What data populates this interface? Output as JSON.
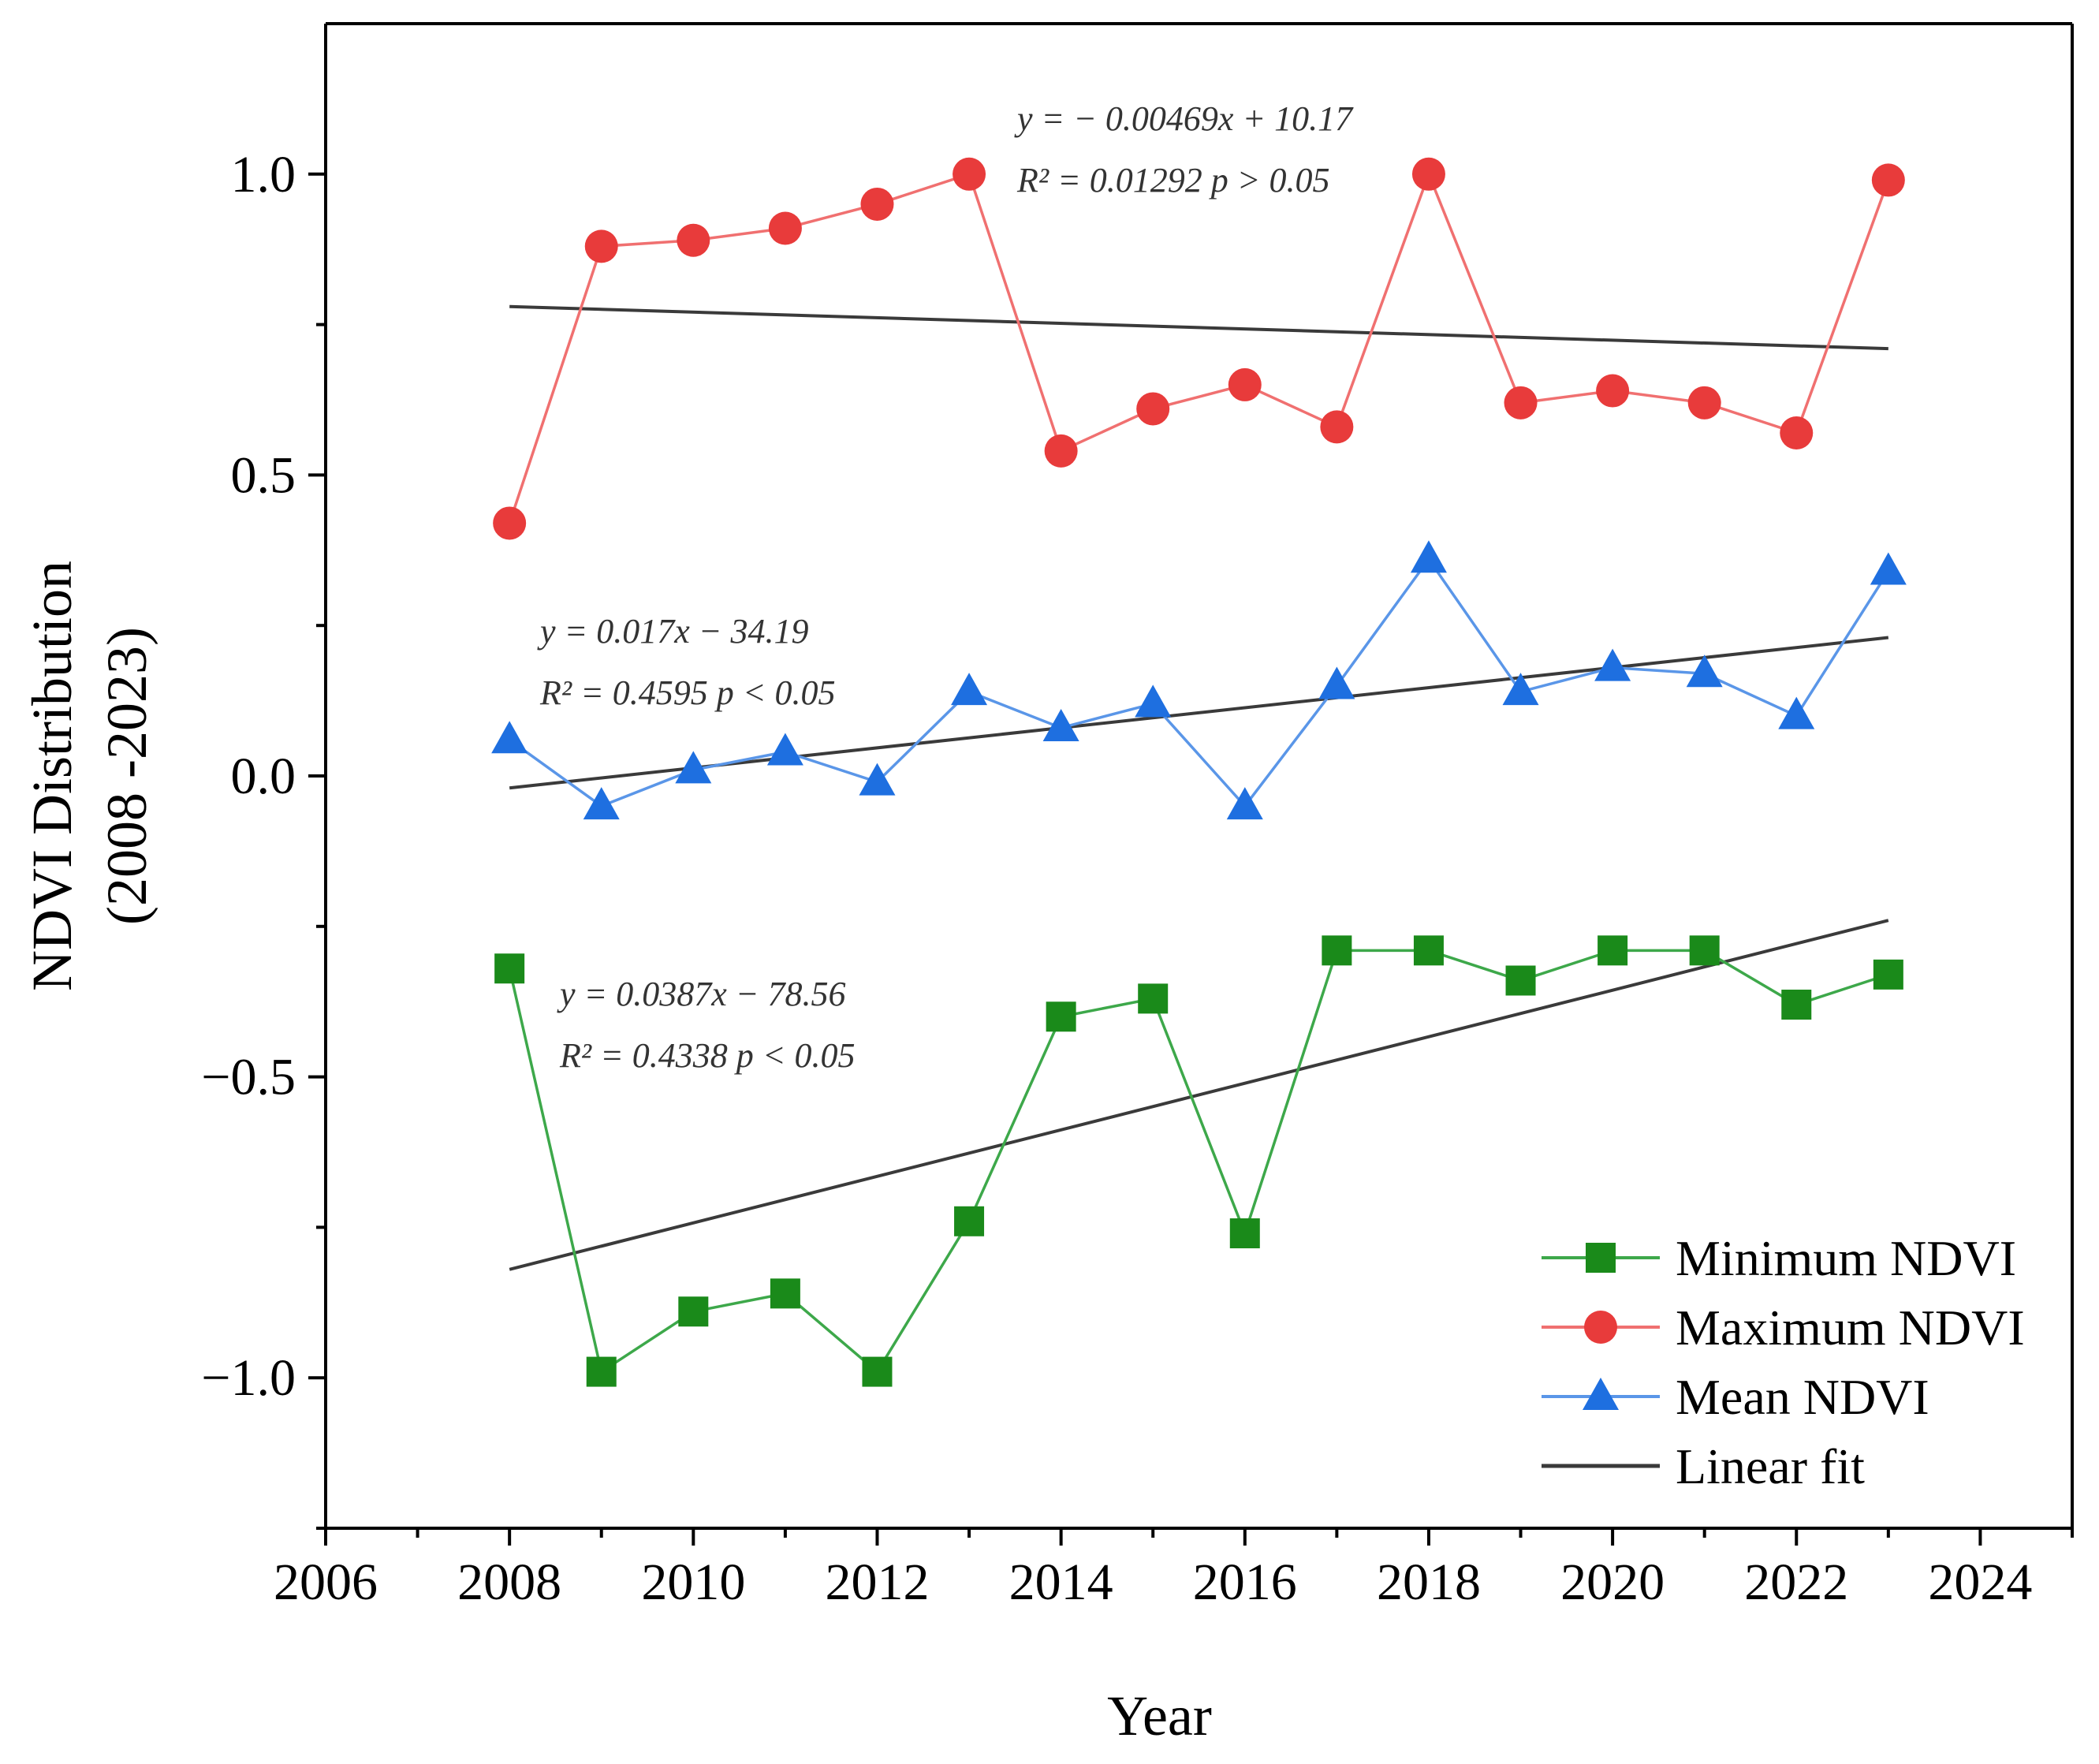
{
  "chart_data": {
    "type": "line",
    "xlabel": "Year",
    "ylabel_lines": [
      "NDVI Distribution",
      "(2008 -2023)"
    ],
    "xlim": [
      2006,
      2025
    ],
    "ylim": [
      -1.25,
      1.25
    ],
    "xticks": [
      2006,
      2008,
      2010,
      2012,
      2014,
      2016,
      2018,
      2020,
      2022,
      2024
    ],
    "xtick_labels": [
      "2006",
      "2008",
      "2010",
      "2012",
      "2014",
      "2016",
      "2018",
      "2020",
      "2022",
      "2024"
    ],
    "yticks": [
      1.0,
      0.5,
      0.0,
      -0.5,
      -1.0
    ],
    "ytick_labels": [
      "1.0",
      "0.5",
      "0.0",
      "−0.5",
      "−1.0"
    ],
    "grid": false,
    "legend_position": "bottom-right",
    "years": [
      2008,
      2009,
      2010,
      2011,
      2012,
      2013,
      2014,
      2015,
      2016,
      2017,
      2018,
      2019,
      2020,
      2021,
      2022,
      2023
    ],
    "series": [
      {
        "name": "Minimum NDVI",
        "key": "min",
        "color": "#3da84a",
        "marker_color": "#1a8a1a",
        "marker": "square",
        "values": [
          -0.32,
          -0.99,
          -0.89,
          -0.86,
          -0.99,
          -0.74,
          -0.4,
          -0.37,
          -0.76,
          -0.29,
          -0.29,
          -0.34,
          -0.29,
          -0.29,
          -0.38,
          -0.33
        ],
        "fit": {
          "x": [
            2008,
            2023
          ],
          "y": [
            -0.82,
            -0.24
          ]
        },
        "annotation": [
          "y = 0.0387x − 78.56",
          "R² = 0.4338   p < 0.05"
        ]
      },
      {
        "name": "Maximum NDVI",
        "key": "max",
        "color": "#f07070",
        "marker_color": "#e83b3b",
        "marker": "circle",
        "values": [
          0.42,
          0.88,
          0.89,
          0.91,
          0.95,
          1.0,
          0.54,
          0.61,
          0.65,
          0.58,
          1.0,
          0.62,
          0.64,
          0.62,
          0.57,
          0.99
        ],
        "fit": {
          "x": [
            2008,
            2023
          ],
          "y": [
            0.78,
            0.71
          ]
        },
        "annotation": [
          "y = − 0.00469x + 10.17",
          "R² = 0.01292   p > 0.05"
        ]
      },
      {
        "name": "Mean NDVI",
        "key": "mean",
        "color": "#5a96e8",
        "marker_color": "#1e6fe0",
        "marker": "triangle",
        "values": [
          0.06,
          -0.05,
          0.01,
          0.04,
          -0.01,
          0.14,
          0.08,
          0.12,
          -0.05,
          0.15,
          0.36,
          0.14,
          0.18,
          0.17,
          0.1,
          0.34
        ],
        "fit": {
          "x": [
            2008,
            2023
          ],
          "y": [
            -0.02,
            0.23
          ]
        },
        "annotation": [
          "y = 0.017x − 34.19",
          "R² = 0.4595   p < 0.05"
        ]
      }
    ],
    "fit_line_color": "#3a3a3a",
    "legend": [
      "Minimum NDVI",
      "Maximum NDVI",
      "Mean NDVI",
      "Linear fit"
    ]
  }
}
